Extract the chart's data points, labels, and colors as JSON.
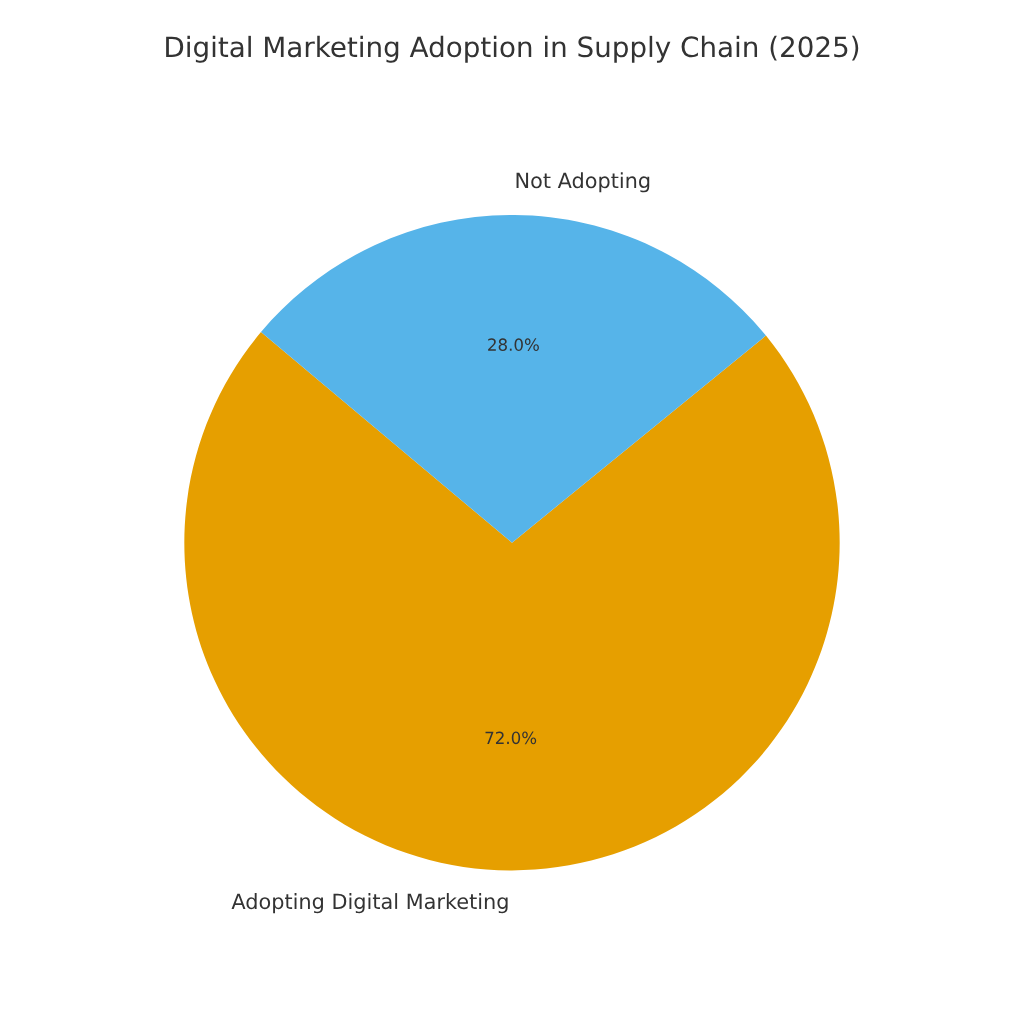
{
  "chart_data": {
    "type": "pie",
    "title": "Digital Marketing Adoption in Supply Chain (2025)",
    "categories": [
      "Adopting Digital Marketing",
      "Not Adopting"
    ],
    "values": [
      72,
      28
    ],
    "colors": [
      "#e69f00",
      "#56b4e9"
    ],
    "value_labels": [
      "72.0%",
      "28.0%"
    ]
  }
}
